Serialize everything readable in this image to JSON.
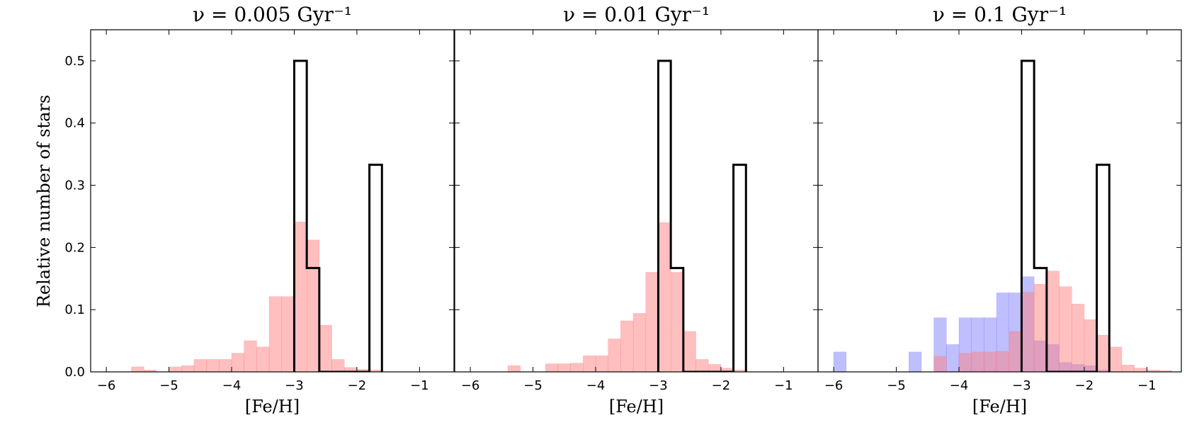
{
  "chart_data": {
    "type": "bar",
    "ylabel": "Relative number of stars",
    "ylim": [
      0,
      0.55
    ],
    "yticks": [
      0.0,
      0.1,
      0.2,
      0.3,
      0.4,
      0.5
    ],
    "ytick_labels": [
      "0.0",
      "0.1",
      "0.2",
      "0.3",
      "0.4",
      "0.5"
    ],
    "colors": {
      "red_fill": "#ff7f7f",
      "blue_fill": "#7f7fff",
      "overlap_fill": "#b03d6f",
      "observed_outline": "#000000"
    },
    "panels": [
      {
        "title": "ν = 0.005 Gyr⁻¹",
        "xlabel": "[Fe/H]",
        "xlim": [
          -6.25,
          -0.45
        ],
        "xticks": [
          -6,
          -5,
          -4,
          -3,
          -2,
          -1
        ],
        "xtick_labels": [
          "−6",
          "−5",
          "−4",
          "−3",
          "−2",
          "−1"
        ],
        "series": [
          {
            "kind": "filled",
            "color": "#ff7f7f",
            "bins": [
              [
                -5.6,
                -5.4,
                0.008
              ],
              [
                -5.4,
                -5.2,
                0.003
              ],
              [
                -5.2,
                -5.0,
                0.0
              ],
              [
                -5.0,
                -4.8,
                0.008
              ],
              [
                -4.8,
                -4.6,
                0.01
              ],
              [
                -4.6,
                -4.4,
                0.02
              ],
              [
                -4.4,
                -4.2,
                0.02
              ],
              [
                -4.2,
                -4.0,
                0.02
              ],
              [
                -4.0,
                -3.8,
                0.03
              ],
              [
                -3.8,
                -3.6,
                0.05
              ],
              [
                -3.6,
                -3.4,
                0.04
              ],
              [
                -3.4,
                -3.2,
                0.121
              ],
              [
                -3.2,
                -3.0,
                0.121
              ],
              [
                -3.0,
                -2.8,
                0.241
              ],
              [
                -2.8,
                -2.6,
                0.212
              ],
              [
                -2.6,
                -2.4,
                0.075
              ],
              [
                -2.4,
                -2.2,
                0.02
              ],
              [
                -2.2,
                -2.0,
                0.007
              ],
              [
                -2.0,
                -1.8,
                0.004
              ],
              [
                -1.8,
                -1.6,
                0.003
              ]
            ]
          },
          {
            "kind": "step",
            "color": "#000000",
            "bins": [
              [
                -3.0,
                -2.8,
                0.5
              ],
              [
                -2.8,
                -2.6,
                0.167
              ],
              [
                -2.6,
                -1.8,
                0.0
              ],
              [
                -1.8,
                -1.6,
                0.333
              ]
            ]
          }
        ]
      },
      {
        "title": "ν = 0.01 Gyr⁻¹",
        "xlabel": "[Fe/H]",
        "xlim": [
          -6.25,
          -0.45
        ],
        "xticks": [
          -6,
          -5,
          -4,
          -3,
          -2,
          -1
        ],
        "xtick_labels": [
          "−6",
          "−5",
          "−4",
          "−3",
          "−2",
          "−1"
        ],
        "series": [
          {
            "kind": "filled",
            "color": "#ff7f7f",
            "bins": [
              [
                -5.4,
                -5.2,
                0.01
              ],
              [
                -5.2,
                -5.0,
                0.0
              ],
              [
                -5.0,
                -4.8,
                0.0
              ],
              [
                -4.8,
                -4.6,
                0.013
              ],
              [
                -4.6,
                -4.4,
                0.013
              ],
              [
                -4.4,
                -4.2,
                0.014
              ],
              [
                -4.2,
                -4.0,
                0.026
              ],
              [
                -4.0,
                -3.8,
                0.026
              ],
              [
                -3.8,
                -3.6,
                0.053
              ],
              [
                -3.6,
                -3.4,
                0.082
              ],
              [
                -3.4,
                -3.2,
                0.094
              ],
              [
                -3.2,
                -3.0,
                0.16
              ],
              [
                -3.0,
                -2.8,
                0.24
              ],
              [
                -2.8,
                -2.6,
                0.16
              ],
              [
                -2.6,
                -2.4,
                0.065
              ],
              [
                -2.4,
                -2.2,
                0.02
              ],
              [
                -2.2,
                -2.0,
                0.012
              ],
              [
                -2.0,
                -1.8,
                0.006
              ],
              [
                -1.8,
                -1.6,
                0.003
              ]
            ]
          },
          {
            "kind": "step",
            "color": "#000000",
            "bins": [
              [
                -3.0,
                -2.8,
                0.5
              ],
              [
                -2.8,
                -2.6,
                0.167
              ],
              [
                -2.6,
                -1.8,
                0.0
              ],
              [
                -1.8,
                -1.6,
                0.333
              ]
            ]
          }
        ]
      },
      {
        "title": "ν = 0.1 Gyr⁻¹",
        "xlabel": "[Fe/H]",
        "xlim": [
          -6.25,
          -0.45
        ],
        "xticks": [
          -6,
          -5,
          -4,
          -3,
          -2,
          -1
        ],
        "xtick_labels": [
          "−6",
          "−5",
          "−4",
          "−3",
          "−2",
          "−1"
        ],
        "series": [
          {
            "kind": "filled",
            "color": "#7f7fff",
            "bins": [
              [
                -6.0,
                -5.8,
                0.032
              ],
              [
                -5.8,
                -5.6,
                0.0
              ],
              [
                -5.6,
                -5.4,
                0.0
              ],
              [
                -5.4,
                -5.2,
                0.0
              ],
              [
                -5.2,
                -5.0,
                0.0
              ],
              [
                -5.0,
                -4.8,
                0.0
              ],
              [
                -4.8,
                -4.6,
                0.032
              ],
              [
                -4.6,
                -4.4,
                0.0
              ],
              [
                -4.4,
                -4.2,
                0.087
              ],
              [
                -4.2,
                -4.0,
                0.044
              ],
              [
                -4.0,
                -3.8,
                0.087
              ],
              [
                -3.8,
                -3.6,
                0.087
              ],
              [
                -3.6,
                -3.4,
                0.087
              ],
              [
                -3.4,
                -3.2,
                0.127
              ],
              [
                -3.2,
                -3.0,
                0.127
              ],
              [
                -3.0,
                -2.8,
                0.153
              ],
              [
                -2.8,
                -2.6,
                0.05
              ],
              [
                -2.6,
                -2.4,
                0.044
              ],
              [
                -2.4,
                -2.2,
                0.015
              ],
              [
                -2.2,
                -2.0,
                0.012
              ],
              [
                -2.0,
                -1.8,
                0.01
              ],
              [
                -1.8,
                -1.6,
                0.003
              ]
            ]
          },
          {
            "kind": "filled",
            "color": "#ff7f7f",
            "bins": [
              [
                -4.4,
                -4.2,
                0.025
              ],
              [
                -4.2,
                -4.0,
                0.0
              ],
              [
                -4.0,
                -3.8,
                0.03
              ],
              [
                -3.8,
                -3.6,
                0.032
              ],
              [
                -3.6,
                -3.4,
                0.032
              ],
              [
                -3.4,
                -3.2,
                0.033
              ],
              [
                -3.2,
                -3.0,
                0.065
              ],
              [
                -3.0,
                -2.8,
                0.128
              ],
              [
                -2.8,
                -2.6,
                0.141
              ],
              [
                -2.6,
                -2.4,
                0.162
              ],
              [
                -2.4,
                -2.2,
                0.137
              ],
              [
                -2.2,
                -2.0,
                0.109
              ],
              [
                -2.0,
                -1.8,
                0.084
              ],
              [
                -1.8,
                -1.6,
                0.059
              ],
              [
                -1.6,
                -1.4,
                0.04
              ],
              [
                -1.4,
                -1.2,
                0.011
              ],
              [
                -1.2,
                -1.0,
                0.006
              ],
              [
                -1.0,
                -0.8,
                0.003
              ],
              [
                -0.8,
                -0.6,
                0.002
              ]
            ]
          },
          {
            "kind": "step",
            "color": "#000000",
            "bins": [
              [
                -3.0,
                -2.8,
                0.5
              ],
              [
                -2.8,
                -2.6,
                0.167
              ],
              [
                -2.6,
                -1.8,
                0.0
              ],
              [
                -1.8,
                -1.6,
                0.333
              ]
            ]
          }
        ]
      }
    ]
  }
}
